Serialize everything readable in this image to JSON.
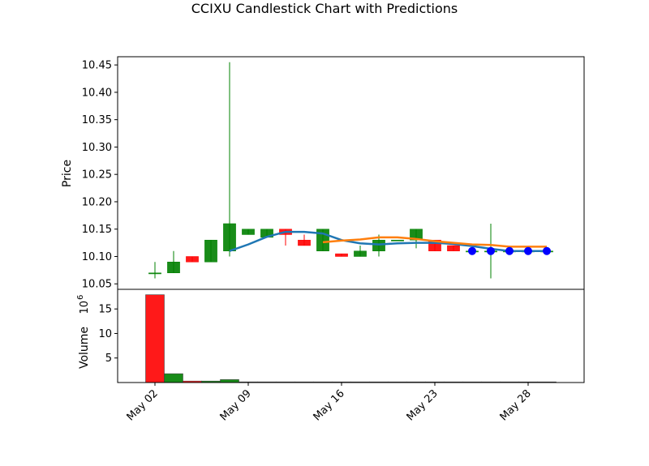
{
  "chart_data": {
    "type": "candlestick",
    "title": "CCIXU Candlestick Chart with Predictions",
    "price_panel": {
      "ylabel": "Price",
      "ylim": [
        10.04,
        10.465
      ],
      "yticks": [
        "10.05",
        "10.10",
        "10.15",
        "10.20",
        "10.25",
        "10.30",
        "10.35",
        "10.40",
        "10.45"
      ],
      "candles": [
        {
          "x": 0,
          "open": 10.07,
          "high": 10.09,
          "low": 10.06,
          "close": 10.07
        },
        {
          "x": 1,
          "open": 10.07,
          "high": 10.11,
          "low": 10.07,
          "close": 10.09
        },
        {
          "x": 2,
          "open": 10.1,
          "high": 10.1,
          "low": 10.09,
          "close": 10.09
        },
        {
          "x": 3,
          "open": 10.09,
          "high": 10.13,
          "low": 10.09,
          "close": 10.13
        },
        {
          "x": 4,
          "open": 10.11,
          "high": 10.455,
          "low": 10.1,
          "close": 10.16
        },
        {
          "x": 5,
          "open": 10.14,
          "high": 10.15,
          "low": 10.14,
          "close": 10.15
        },
        {
          "x": 6,
          "open": 10.135,
          "high": 10.15,
          "low": 10.135,
          "close": 10.15
        },
        {
          "x": 7,
          "open": 10.15,
          "high": 10.15,
          "low": 10.12,
          "close": 10.14
        },
        {
          "x": 8,
          "open": 10.13,
          "high": 10.14,
          "low": 10.12,
          "close": 10.12
        },
        {
          "x": 9,
          "open": 10.11,
          "high": 10.15,
          "low": 10.11,
          "close": 10.15
        },
        {
          "x": 10,
          "open": 10.105,
          "high": 10.105,
          "low": 10.1,
          "close": 10.1
        },
        {
          "x": 11,
          "open": 10.1,
          "high": 10.12,
          "low": 10.1,
          "close": 10.11
        },
        {
          "x": 12,
          "open": 10.11,
          "high": 10.14,
          "low": 10.1,
          "close": 10.13
        },
        {
          "x": 13,
          "open": 10.13,
          "high": 10.13,
          "low": 10.13,
          "close": 10.13
        },
        {
          "x": 14,
          "open": 10.13,
          "high": 10.15,
          "low": 10.115,
          "close": 10.15
        },
        {
          "x": 15,
          "open": 10.13,
          "high": 10.13,
          "low": 10.11,
          "close": 10.11
        },
        {
          "x": 16,
          "open": 10.12,
          "high": 10.12,
          "low": 10.11,
          "close": 10.11
        },
        {
          "x": 17,
          "open": 10.11,
          "high": 10.11,
          "low": 10.11,
          "close": 10.11
        },
        {
          "x": 18,
          "open": 10.11,
          "high": 10.16,
          "low": 10.06,
          "close": 10.11
        },
        {
          "x": 19,
          "open": 10.11,
          "high": 10.11,
          "low": 10.11,
          "close": 10.11
        },
        {
          "x": 20,
          "open": 10.11,
          "high": 10.11,
          "low": 10.11,
          "close": 10.11
        },
        {
          "x": 21,
          "open": 10.11,
          "high": 10.11,
          "low": 10.11,
          "close": 10.11
        }
      ],
      "blue_line": [
        [
          4,
          10.11
        ],
        [
          5,
          10.122
        ],
        [
          6,
          10.136
        ],
        [
          7,
          10.145
        ],
        [
          8,
          10.145
        ],
        [
          9,
          10.142
        ],
        [
          10,
          10.13
        ],
        [
          11,
          10.124
        ],
        [
          12,
          10.122
        ],
        [
          13,
          10.124
        ],
        [
          14,
          10.125
        ],
        [
          15,
          10.125
        ],
        [
          16,
          10.123
        ],
        [
          17,
          10.119
        ],
        [
          18,
          10.114
        ],
        [
          19,
          10.11
        ],
        [
          20,
          10.11
        ],
        [
          21,
          10.11
        ]
      ],
      "orange_line": [
        [
          9,
          10.126
        ],
        [
          10,
          10.129
        ],
        [
          11,
          10.131
        ],
        [
          12,
          10.135
        ],
        [
          13,
          10.135
        ],
        [
          14,
          10.132
        ],
        [
          15,
          10.128
        ],
        [
          16,
          10.125
        ],
        [
          17,
          10.122
        ],
        [
          18,
          10.121
        ],
        [
          19,
          10.118
        ],
        [
          20,
          10.118
        ],
        [
          21,
          10.118
        ]
      ],
      "prediction_points": [
        [
          17,
          10.11
        ],
        [
          18,
          10.11
        ],
        [
          19,
          10.11
        ],
        [
          20,
          10.11
        ],
        [
          21,
          10.11
        ]
      ]
    },
    "volume_panel": {
      "ylabel": "Volume",
      "scale_label": "10",
      "scale_exp": "6",
      "ylim": [
        0,
        19
      ],
      "yticks": [
        "5",
        "10",
        "15"
      ],
      "bars": [
        {
          "x": 0,
          "value": 17.9,
          "color": "red"
        },
        {
          "x": 1,
          "value": 1.8,
          "color": "green"
        },
        {
          "x": 2,
          "value": 0.3,
          "color": "red"
        },
        {
          "x": 3,
          "value": 0.3,
          "color": "green"
        },
        {
          "x": 4,
          "value": 0.6,
          "color": "green"
        },
        {
          "x": 5,
          "value": 0.05,
          "color": "green"
        },
        {
          "x": 6,
          "value": 0.05,
          "color": "green"
        },
        {
          "x": 7,
          "value": 0.05,
          "color": "red"
        },
        {
          "x": 8,
          "value": 0.05,
          "color": "red"
        },
        {
          "x": 9,
          "value": 0.05,
          "color": "green"
        },
        {
          "x": 10,
          "value": 0.05,
          "color": "red"
        },
        {
          "x": 11,
          "value": 0.05,
          "color": "green"
        },
        {
          "x": 12,
          "value": 0.05,
          "color": "green"
        },
        {
          "x": 13,
          "value": 0.05,
          "color": "red"
        },
        {
          "x": 14,
          "value": 0.05,
          "color": "green"
        },
        {
          "x": 15,
          "value": 0.05,
          "color": "red"
        },
        {
          "x": 16,
          "value": 0.05,
          "color": "red"
        },
        {
          "x": 17,
          "value": 0.05,
          "color": "green"
        },
        {
          "x": 18,
          "value": 0.05,
          "color": "red"
        },
        {
          "x": 19,
          "value": 0.05,
          "color": "green"
        },
        {
          "x": 20,
          "value": 0.05,
          "color": "green"
        },
        {
          "x": 21,
          "value": 0.05,
          "color": "green"
        }
      ]
    },
    "xaxis": {
      "xlim": [
        -2,
        23
      ],
      "ticks": [
        {
          "x": 0,
          "label": "May 02"
        },
        {
          "x": 5,
          "label": "May 09"
        },
        {
          "x": 10,
          "label": "May 16"
        },
        {
          "x": 15,
          "label": "May 23"
        },
        {
          "x": 20,
          "label": "May 28"
        }
      ]
    },
    "colors": {
      "up": "#008000",
      "down": "#ff0000",
      "blue_line": "#1f77b4",
      "orange_line": "#ff7f0e",
      "prediction": "#0000ff"
    }
  }
}
